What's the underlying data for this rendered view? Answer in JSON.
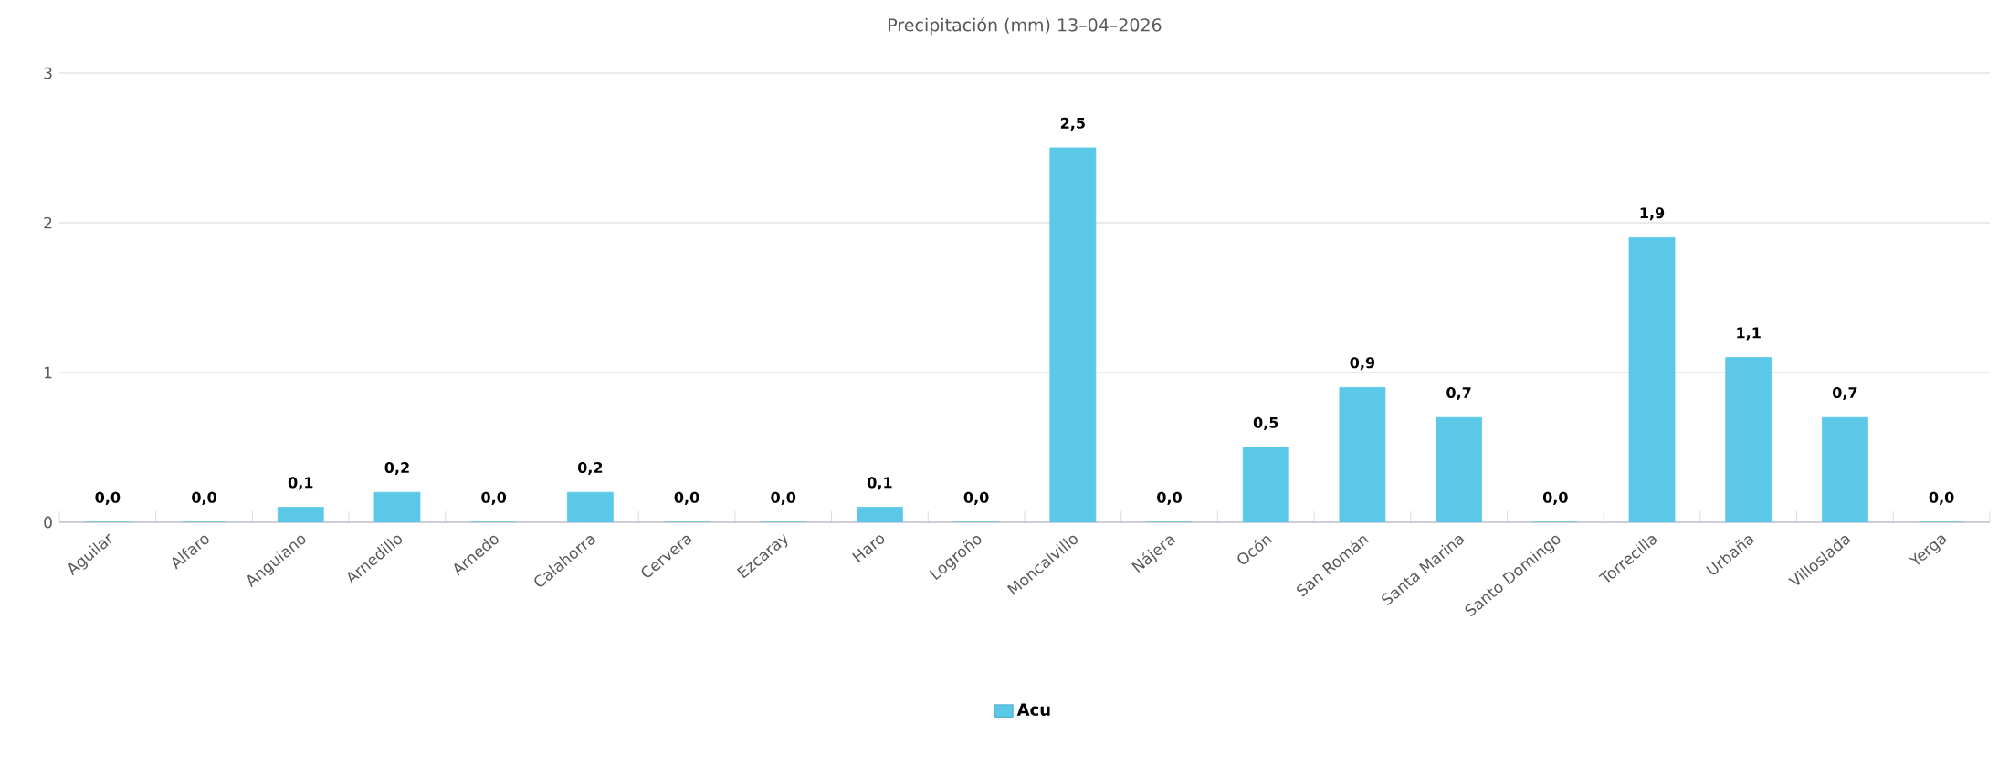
{
  "chart_data": {
    "type": "bar",
    "title": "Precipitación (mm) 13–04–2026",
    "categories": [
      "Aguilar",
      "Alfaro",
      "Anguiano",
      "Arnedillo",
      "Arnedo",
      "Calahorra",
      "Cervera",
      "Ezcaray",
      "Haro",
      "Logroño",
      "Moncalvillo",
      "Nájera",
      "Ocón",
      "San Román",
      "Santa Marina",
      "Santo Domingo",
      "Torrecilla",
      "Urbaña",
      "Villoslada",
      "Yerga"
    ],
    "series": [
      {
        "name": "Acu",
        "color": "#5bc8e8",
        "values": [
          0,
          0,
          0.1,
          0.2,
          0,
          0.2,
          0,
          0,
          0.1,
          0,
          2.5,
          0,
          0.5,
          0.9,
          0.7,
          0,
          1.9,
          1.1,
          0.7,
          0
        ],
        "value_labels": [
          "0,0",
          "0,0",
          "0,1",
          "0,2",
          "0,0",
          "0,2",
          "0,0",
          "0,0",
          "0,1",
          "0,0",
          "2,5",
          "0,0",
          "0,5",
          "0,9",
          "0,7",
          "0,0",
          "1,9",
          "1,1",
          "0,7",
          "0,0"
        ]
      }
    ],
    "ylim": [
      0,
      3
    ],
    "yticks": [
      0,
      1,
      2,
      3
    ],
    "grid": "y",
    "legend": "bottom"
  }
}
